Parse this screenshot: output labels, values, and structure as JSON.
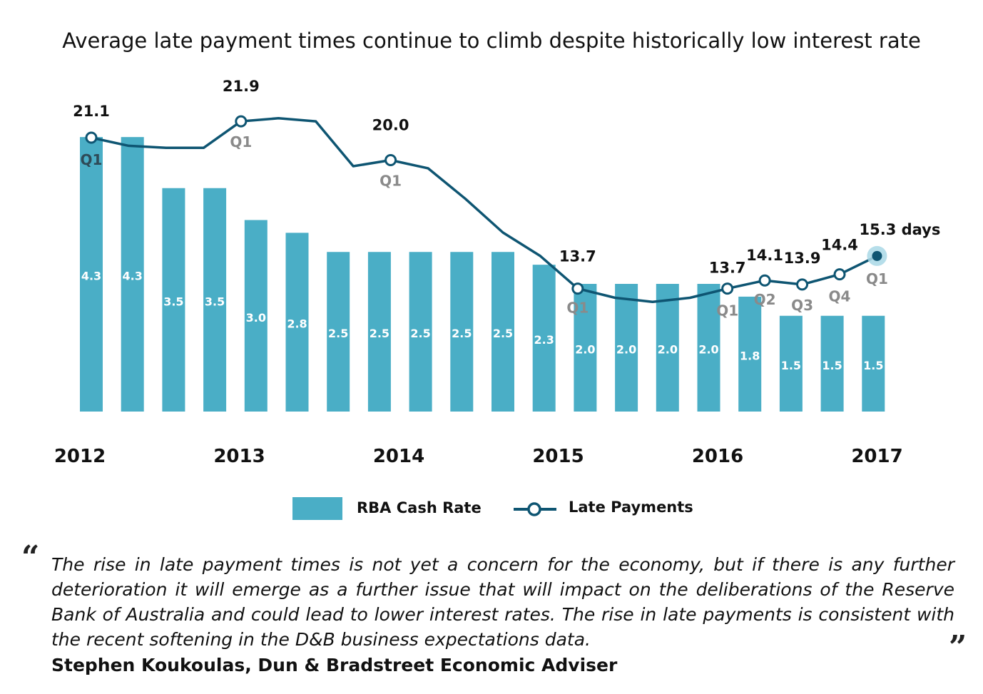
{
  "chart_data": {
    "type": "bar+line",
    "title": "Average late payment times continue to climb despite historically low interest rate",
    "year_labels": [
      "2012",
      "2013",
      "2014",
      "2015",
      "2016",
      "2017"
    ],
    "bar_series": {
      "name": "RBA Cash Rate",
      "color": "#4aaec6",
      "values": [
        4.3,
        4.3,
        3.5,
        3.5,
        3.0,
        2.8,
        2.5,
        2.5,
        2.5,
        2.5,
        2.5,
        2.3,
        2.0,
        2.0,
        2.0,
        2.0,
        1.8,
        1.5,
        1.5,
        1.5
      ],
      "labels": [
        "4.3",
        "4.3",
        "3.5",
        "3.5",
        "3.0",
        "2.8",
        "2.5",
        "2.5",
        "2.5",
        "2.5",
        "2.5",
        "2.3",
        "2.0",
        "2.0",
        "2.0",
        "2.0",
        "1.8",
        "1.5",
        "1.5",
        "1.5"
      ]
    },
    "line_series": {
      "name": "Late Payments",
      "color": "#0e5572",
      "unit": "days",
      "values": [
        21.1,
        20.7,
        20.6,
        20.6,
        21.9,
        22.05,
        21.9,
        19.7,
        20.0,
        19.6,
        18.1,
        16.45,
        15.3,
        13.7,
        13.25,
        13.05,
        13.25,
        13.7,
        14.1,
        13.9,
        14.4,
        15.3
      ],
      "markers": [
        {
          "index": 0,
          "value_label": "21.1",
          "quarter_label": "Q1"
        },
        {
          "index": 4,
          "value_label": "21.9",
          "quarter_label": "Q1"
        },
        {
          "index": 8,
          "value_label": "20.0",
          "quarter_label": "Q1"
        },
        {
          "index": 13,
          "value_label": "13.7",
          "quarter_label": "Q1"
        },
        {
          "index": 17,
          "value_label": "13.7",
          "quarter_label": "Q1"
        },
        {
          "index": 18,
          "value_label": "14.1",
          "quarter_label": "Q2"
        },
        {
          "index": 19,
          "value_label": "13.9",
          "quarter_label": "Q3"
        },
        {
          "index": 20,
          "value_label": "14.4",
          "quarter_label": "Q4"
        },
        {
          "index": 21,
          "value_label": "15.3 days",
          "quarter_label": "Q1",
          "highlight": true
        }
      ]
    }
  },
  "legend": {
    "bar_label": "RBA Cash Rate",
    "line_label": "Late Payments"
  },
  "quote": {
    "open_mark": "“",
    "close_mark": "”",
    "text": "The rise in late payment times is not yet a concern for the economy, but if there is any further deterioration it will emerge as a further issue that will impact on the deliberations of the Reserve Bank of Australia and could lead to lower interest rates. The rise in late payments is consistent with the recent softening in the D&B business expectations data.",
    "author": "Stephen Koukoulas, Dun & Bradstreet Economic Adviser"
  }
}
